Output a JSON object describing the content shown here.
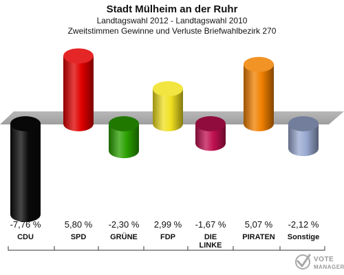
{
  "chart_data": {
    "type": "bar",
    "title": "Stadt Mülheim an der Ruhr",
    "subtitles": [
      "Landtagswahl 2012 - Landtagswahl 2010",
      "Zweitstimmen Gewinne und Verluste Briefwahlbezirk 270"
    ],
    "categories": [
      "CDU",
      "SPD",
      "GRÜNE",
      "FDP",
      "DIE LINKE",
      "PIRATEN",
      "Sonstige"
    ],
    "values": [
      -7.76,
      5.8,
      -2.3,
      2.99,
      -1.67,
      5.07,
      -2.12
    ],
    "value_labels": [
      "-7,76 %",
      "5,80 %",
      "-2,30 %",
      "2,99 %",
      "-1,67 %",
      "5,07 %",
      "-2,12 %"
    ],
    "colors": [
      "#0a0a0a",
      "#e00000",
      "#2aa000",
      "#f0e020",
      "#c01050",
      "#f08000",
      "#98a8d0"
    ],
    "ylim": [
      -7.76,
      5.8
    ],
    "grid": false,
    "legend": "none"
  },
  "logo": {
    "line1": "VOTE",
    "line2": "MANAGER"
  }
}
